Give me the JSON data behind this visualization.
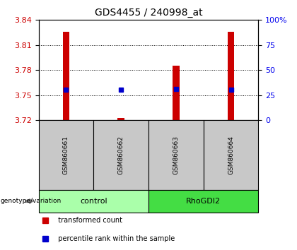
{
  "title": "GDS4455 / 240998_at",
  "samples": [
    "GSM860661",
    "GSM860662",
    "GSM860663",
    "GSM860664"
  ],
  "groups": [
    {
      "name": "control",
      "indices": [
        0,
        1
      ],
      "color": "#aaffaa"
    },
    {
      "name": "RhoGDI2",
      "indices": [
        2,
        3
      ],
      "color": "#44dd44"
    }
  ],
  "bar_bottom": 3.72,
  "bar_tops": [
    3.826,
    3.7225,
    3.785,
    3.826
  ],
  "percentile_ranks": [
    30,
    30,
    31,
    30
  ],
  "ylim_left": [
    3.72,
    3.84
  ],
  "ylim_right": [
    0,
    100
  ],
  "yticks_left": [
    3.72,
    3.75,
    3.78,
    3.81,
    3.84
  ],
  "yticks_right": [
    0,
    25,
    50,
    75,
    100
  ],
  "bar_color": "#CC0000",
  "blue_color": "#0000CC",
  "left_axis_color": "#CC0000",
  "right_axis_color": "#0000EE",
  "legend_items": [
    {
      "color": "#CC0000",
      "label": "  transformed count"
    },
    {
      "color": "#0000CC",
      "label": "  percentile rank within the sample"
    }
  ],
  "genotype_label": "genotype/variation",
  "sample_box_color": "#C8C8C8",
  "bar_width": 0.12
}
